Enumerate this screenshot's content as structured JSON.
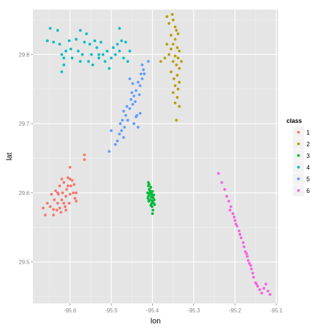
{
  "chart_data": {
    "type": "scatter",
    "xlabel": "lon",
    "ylabel": "lat",
    "xlim": [
      -95.69,
      -95.095
    ],
    "ylim": [
      29.44,
      29.865
    ],
    "x_ticks": [
      -95.6,
      -95.5,
      -95.4,
      -95.3,
      -95.2,
      -95.1
    ],
    "x_tick_labels": [
      "-95.6",
      "-95.5",
      "-95.4",
      "-95.3",
      "-95.2",
      "-95.1"
    ],
    "y_ticks": [
      29.5,
      29.6,
      29.7,
      29.8
    ],
    "y_tick_labels": [
      "29.5",
      "29.6",
      "29.7",
      "29.8"
    ],
    "grid": true,
    "legend": {
      "title": "class",
      "placement": "right",
      "entries": [
        "1",
        "2",
        "3",
        "4",
        "5",
        "6"
      ]
    },
    "colors": {
      "panel_background": "#e5e5e5",
      "grid_major": "#ffffff",
      "grid_minor": "#f2f2f2",
      "series": [
        "#f8766d",
        "#b79f00",
        "#00ba38",
        "#00bfc4",
        "#619cff",
        "#f564e3"
      ]
    },
    "series": [
      {
        "name": "1",
        "points": [
          [
            -95.665,
            29.578
          ],
          [
            -95.66,
            29.568
          ],
          [
            -95.655,
            29.585
          ],
          [
            -95.648,
            29.58
          ],
          [
            -95.645,
            29.598
          ],
          [
            -95.64,
            29.568
          ],
          [
            -95.638,
            29.59
          ],
          [
            -95.635,
            29.603
          ],
          [
            -95.632,
            29.575
          ],
          [
            -95.63,
            29.585
          ],
          [
            -95.628,
            29.598
          ],
          [
            -95.625,
            29.61
          ],
          [
            -95.622,
            29.572
          ],
          [
            -95.62,
            29.59
          ],
          [
            -95.618,
            29.6
          ],
          [
            -95.615,
            29.615
          ],
          [
            -95.612,
            29.58
          ],
          [
            -95.61,
            29.595
          ],
          [
            -95.608,
            29.605
          ],
          [
            -95.605,
            29.622
          ],
          [
            -95.602,
            29.585
          ],
          [
            -95.6,
            29.598
          ],
          [
            -95.598,
            29.61
          ],
          [
            -95.595,
            29.618
          ],
          [
            -95.592,
            29.6
          ],
          [
            -95.59,
            29.612
          ],
          [
            -95.588,
            29.592
          ],
          [
            -95.585,
            29.6
          ],
          [
            -95.62,
            29.62
          ],
          [
            -95.615,
            29.585
          ],
          [
            -95.625,
            29.578
          ],
          [
            -95.61,
            29.575
          ],
          [
            -95.605,
            29.61
          ],
          [
            -95.6,
            29.62
          ],
          [
            -95.585,
            29.588
          ],
          [
            -95.565,
            29.655
          ],
          [
            -95.565,
            29.648
          ],
          [
            -95.63,
            29.6
          ],
          [
            -95.6,
            29.637
          ],
          [
            -95.64,
            29.576
          ]
        ]
      },
      {
        "name": "2",
        "points": [
          [
            -95.365,
            29.855
          ],
          [
            -95.36,
            29.845
          ],
          [
            -95.352,
            29.858
          ],
          [
            -95.35,
            29.85
          ],
          [
            -95.345,
            29.84
          ],
          [
            -95.342,
            29.835
          ],
          [
            -95.355,
            29.828
          ],
          [
            -95.345,
            29.822
          ],
          [
            -95.338,
            29.83
          ],
          [
            -95.35,
            29.815
          ],
          [
            -95.355,
            29.808
          ],
          [
            -95.34,
            29.81
          ],
          [
            -95.335,
            29.805
          ],
          [
            -95.36,
            29.8
          ],
          [
            -95.345,
            29.798
          ],
          [
            -95.338,
            29.795
          ],
          [
            -95.35,
            29.79
          ],
          [
            -95.342,
            29.785
          ],
          [
            -95.335,
            29.78
          ],
          [
            -95.355,
            29.775
          ],
          [
            -95.34,
            29.77
          ],
          [
            -95.348,
            29.765
          ],
          [
            -95.335,
            29.76
          ],
          [
            -95.345,
            29.755
          ],
          [
            -95.338,
            29.75
          ],
          [
            -95.35,
            29.745
          ],
          [
            -95.34,
            29.738
          ],
          [
            -95.345,
            29.73
          ],
          [
            -95.335,
            29.725
          ],
          [
            -95.342,
            29.705
          ],
          [
            -95.38,
            29.79
          ],
          [
            -95.37,
            29.795
          ],
          [
            -95.365,
            29.815
          ],
          [
            -95.33,
            29.79
          ]
        ]
      },
      {
        "name": "3",
        "points": [
          [
            -95.41,
            29.61
          ],
          [
            -95.408,
            29.605
          ],
          [
            -95.405,
            29.6
          ],
          [
            -95.402,
            29.598
          ],
          [
            -95.4,
            29.595
          ],
          [
            -95.398,
            29.592
          ],
          [
            -95.41,
            29.595
          ],
          [
            -95.405,
            29.59
          ],
          [
            -95.4,
            29.588
          ],
          [
            -95.412,
            29.6
          ],
          [
            -95.407,
            29.598
          ],
          [
            -95.403,
            29.594
          ],
          [
            -95.398,
            29.585
          ],
          [
            -95.401,
            29.58
          ],
          [
            -95.404,
            29.582
          ],
          [
            -95.396,
            29.59
          ],
          [
            -95.409,
            29.588
          ],
          [
            -95.406,
            29.603
          ],
          [
            -95.4,
            29.602
          ],
          [
            -95.402,
            29.585
          ],
          [
            -95.399,
            29.575
          ],
          [
            -95.4,
            29.57
          ],
          [
            -95.41,
            29.615
          ],
          [
            -95.408,
            29.612
          ],
          [
            -95.411,
            29.592
          ],
          [
            -95.404,
            29.608
          ],
          [
            -95.397,
            29.597
          ],
          [
            -95.395,
            29.583
          ]
        ]
      },
      {
        "name": "4",
        "points": [
          [
            -95.655,
            29.82
          ],
          [
            -95.648,
            29.838
          ],
          [
            -95.64,
            29.818
          ],
          [
            -95.63,
            29.835
          ],
          [
            -95.625,
            29.815
          ],
          [
            -95.62,
            29.8
          ],
          [
            -95.615,
            29.795
          ],
          [
            -95.61,
            29.805
          ],
          [
            -95.602,
            29.82
          ],
          [
            -95.598,
            29.808
          ],
          [
            -95.595,
            29.795
          ],
          [
            -95.585,
            29.822
          ],
          [
            -95.58,
            29.805
          ],
          [
            -95.575,
            29.835
          ],
          [
            -95.57,
            29.8
          ],
          [
            -95.565,
            29.818
          ],
          [
            -95.56,
            29.83
          ],
          [
            -95.555,
            29.79
          ],
          [
            -95.552,
            29.815
          ],
          [
            -95.548,
            29.8
          ],
          [
            -95.54,
            29.82
          ],
          [
            -95.535,
            29.81
          ],
          [
            -95.53,
            29.795
          ],
          [
            -95.525,
            29.818
          ],
          [
            -95.52,
            29.8
          ],
          [
            -95.515,
            29.79
          ],
          [
            -95.51,
            29.805
          ],
          [
            -95.505,
            29.78
          ],
          [
            -95.5,
            29.795
          ],
          [
            -95.495,
            29.81
          ],
          [
            -95.49,
            29.8
          ],
          [
            -95.485,
            29.815
          ],
          [
            -95.48,
            29.805
          ],
          [
            -95.475,
            29.82
          ],
          [
            -95.47,
            29.795
          ],
          [
            -95.465,
            29.818
          ],
          [
            -95.46,
            29.79
          ],
          [
            -95.455,
            29.805
          ],
          [
            -95.62,
            29.775
          ],
          [
            -95.615,
            29.785
          ],
          [
            -95.575,
            29.79
          ],
          [
            -95.48,
            29.838
          ],
          [
            -95.545,
            29.785
          ],
          [
            -95.53,
            29.8
          ]
        ]
      },
      {
        "name": "5",
        "points": [
          [
            -95.505,
            29.66
          ],
          [
            -95.5,
            29.69
          ],
          [
            -95.49,
            29.67
          ],
          [
            -95.485,
            29.675
          ],
          [
            -95.48,
            29.685
          ],
          [
            -95.478,
            29.7
          ],
          [
            -95.475,
            29.69
          ],
          [
            -95.473,
            29.705
          ],
          [
            -95.47,
            29.718
          ],
          [
            -95.468,
            29.695
          ],
          [
            -95.465,
            29.712
          ],
          [
            -95.462,
            29.725
          ],
          [
            -95.46,
            29.705
          ],
          [
            -95.455,
            29.722
          ],
          [
            -95.452,
            29.735
          ],
          [
            -95.45,
            29.745
          ],
          [
            -95.448,
            29.728
          ],
          [
            -95.445,
            29.74
          ],
          [
            -95.442,
            29.732
          ],
          [
            -95.44,
            29.748
          ],
          [
            -95.438,
            29.712
          ],
          [
            -95.435,
            29.76
          ],
          [
            -95.432,
            29.742
          ],
          [
            -95.43,
            29.755
          ],
          [
            -95.428,
            29.772
          ],
          [
            -95.425,
            29.765
          ],
          [
            -95.422,
            29.778
          ],
          [
            -95.42,
            29.772
          ],
          [
            -95.445,
            29.7
          ],
          [
            -95.435,
            29.695
          ],
          [
            -95.43,
            29.715
          ],
          [
            -95.425,
            29.785
          ],
          [
            -95.41,
            29.79
          ],
          [
            -95.47,
            29.68
          ],
          [
            -95.455,
            29.765
          ],
          [
            -95.44,
            29.71
          ],
          [
            -95.448,
            29.758
          ]
        ]
      },
      {
        "name": "6",
        "points": [
          [
            -95.24,
            29.628
          ],
          [
            -95.232,
            29.615
          ],
          [
            -95.225,
            29.605
          ],
          [
            -95.22,
            29.595
          ],
          [
            -95.215,
            29.588
          ],
          [
            -95.21,
            29.58
          ],
          [
            -95.205,
            29.57
          ],
          [
            -95.202,
            29.565
          ],
          [
            -95.2,
            29.56
          ],
          [
            -95.195,
            29.552
          ],
          [
            -95.19,
            29.545
          ],
          [
            -95.188,
            29.54
          ],
          [
            -95.185,
            29.535
          ],
          [
            -95.18,
            29.528
          ],
          [
            -95.178,
            29.522
          ],
          [
            -95.175,
            29.515
          ],
          [
            -95.17,
            29.508
          ],
          [
            -95.168,
            29.502
          ],
          [
            -95.165,
            29.498
          ],
          [
            -95.16,
            29.49
          ],
          [
            -95.157,
            29.484
          ],
          [
            -95.155,
            29.478
          ],
          [
            -95.15,
            29.47
          ],
          [
            -95.145,
            29.465
          ],
          [
            -95.14,
            29.46
          ],
          [
            -95.135,
            29.455
          ],
          [
            -95.13,
            29.462
          ],
          [
            -95.125,
            29.468
          ],
          [
            -95.12,
            29.458
          ],
          [
            -95.115,
            29.453
          ],
          [
            -95.212,
            29.575
          ],
          [
            -95.198,
            29.555
          ],
          [
            -95.172,
            29.512
          ],
          [
            -95.162,
            29.495
          ],
          [
            -95.148,
            29.468
          ]
        ]
      }
    ]
  }
}
